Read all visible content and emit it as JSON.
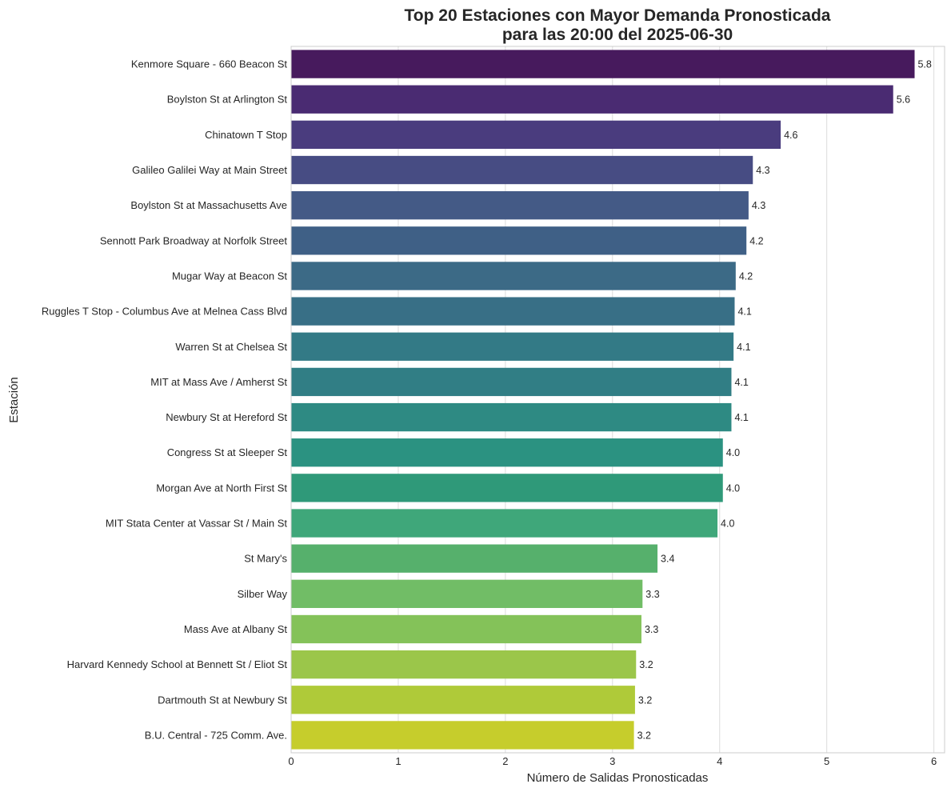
{
  "chart_data": {
    "type": "bar",
    "orientation": "horizontal",
    "title": "Top 20 Estaciones con Mayor Demanda Pronosticada",
    "title_line2": "para las 20:00 del 2025-06-30",
    "xlabel": "Número de Salidas Pronosticadas",
    "ylabel": "Estación",
    "xlim": [
      0,
      6.1
    ],
    "xticks": [
      0,
      1,
      2,
      3,
      4,
      5,
      6
    ],
    "grid": true,
    "categories": [
      "Kenmore Square - 660 Beacon St",
      "Boylston St at Arlington St",
      "Chinatown T Stop",
      "Galileo Galilei Way at Main Street",
      "Boylston St at Massachusetts Ave",
      "Sennott Park Broadway at Norfolk Street",
      "Mugar Way at Beacon St",
      "Ruggles T Stop - Columbus Ave at Melnea Cass Blvd",
      "Warren St at Chelsea St",
      "MIT at Mass Ave / Amherst St",
      "Newbury St at Hereford St",
      "Congress St at Sleeper St",
      "Morgan Ave at North First St",
      "MIT Stata Center at Vassar St / Main St",
      "St Mary's",
      "Silber Way",
      "Mass Ave at Albany St",
      "Harvard Kennedy School at Bennett St / Eliot St",
      "Dartmouth St at Newbury St",
      "B.U. Central - 725 Comm. Ave."
    ],
    "values": [
      5.82,
      5.62,
      4.57,
      4.31,
      4.27,
      4.25,
      4.15,
      4.14,
      4.13,
      4.11,
      4.11,
      4.03,
      4.03,
      3.98,
      3.42,
      3.28,
      3.27,
      3.22,
      3.21,
      3.2
    ],
    "value_labels": [
      "5.8",
      "5.6",
      "4.6",
      "4.3",
      "4.3",
      "4.2",
      "4.2",
      "4.1",
      "4.1",
      "4.1",
      "4.1",
      "4.0",
      "4.0",
      "4.0",
      "3.4",
      "3.3",
      "3.3",
      "3.2",
      "3.2",
      "3.2"
    ],
    "colors": [
      "#471a5d",
      "#4a2b72",
      "#4a3c7e",
      "#474c83",
      "#445a86",
      "#3f6086",
      "#3c6a86",
      "#386f86",
      "#337a86",
      "#317e85",
      "#2e8a83",
      "#2b9281",
      "#2f9979",
      "#3fa77a",
      "#56b06c",
      "#71bd66",
      "#84c259",
      "#9bc64a",
      "#afca39",
      "#c6cd2c"
    ]
  }
}
